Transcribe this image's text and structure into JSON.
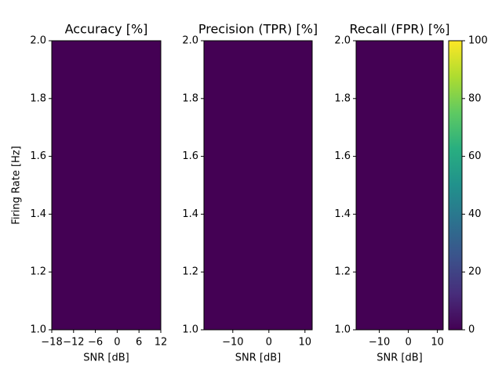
{
  "chart_data": [
    {
      "type": "heatmap",
      "title": "Accuracy [%]",
      "xlabel": "SNR [dB]",
      "ylabel": "Firing Rate [Hz]",
      "values": [
        [
          0
        ]
      ],
      "xlim": [
        -18,
        12
      ],
      "ylim": [
        1,
        2
      ],
      "xticks": [
        {
          "value": -18,
          "label": "−18"
        },
        {
          "value": -12,
          "label": "−12"
        },
        {
          "value": -6,
          "label": "−6"
        },
        0,
        6,
        12
      ],
      "yticks": [
        {
          "value": 1,
          "label": "1.0"
        },
        1.2,
        1.4,
        1.6,
        1.8,
        {
          "value": 2,
          "label": "2.0"
        }
      ]
    },
    {
      "type": "heatmap",
      "title": "Precision (TPR) [%]",
      "xlabel": "SNR [dB]",
      "values": [
        [
          0
        ]
      ],
      "xlim": [
        -18,
        12
      ],
      "ylim": [
        1,
        2
      ],
      "xticks": [
        {
          "value": -10,
          "label": "−10"
        },
        0,
        10
      ],
      "yticks": [
        {
          "value": 1,
          "label": "1.0"
        },
        1.2,
        1.4,
        1.6,
        1.8,
        {
          "value": 2,
          "label": "2.0"
        }
      ]
    },
    {
      "type": "heatmap",
      "title": "Recall (FPR) [%]",
      "xlabel": "SNR [dB]",
      "values": [
        [
          0
        ]
      ],
      "xlim": [
        -18,
        12
      ],
      "ylim": [
        1,
        2
      ],
      "xticks": [
        {
          "value": -10,
          "label": "−10"
        },
        0,
        10
      ],
      "yticks": [
        {
          "value": 1,
          "label": "1.0"
        },
        1.2,
        1.4,
        1.6,
        1.8,
        {
          "value": 2,
          "label": "2.0"
        }
      ],
      "colormap": "viridis",
      "colorbar": {
        "lim": [
          0,
          100
        ],
        "ticks": [
          0,
          20,
          40,
          60,
          80,
          100
        ]
      }
    }
  ]
}
